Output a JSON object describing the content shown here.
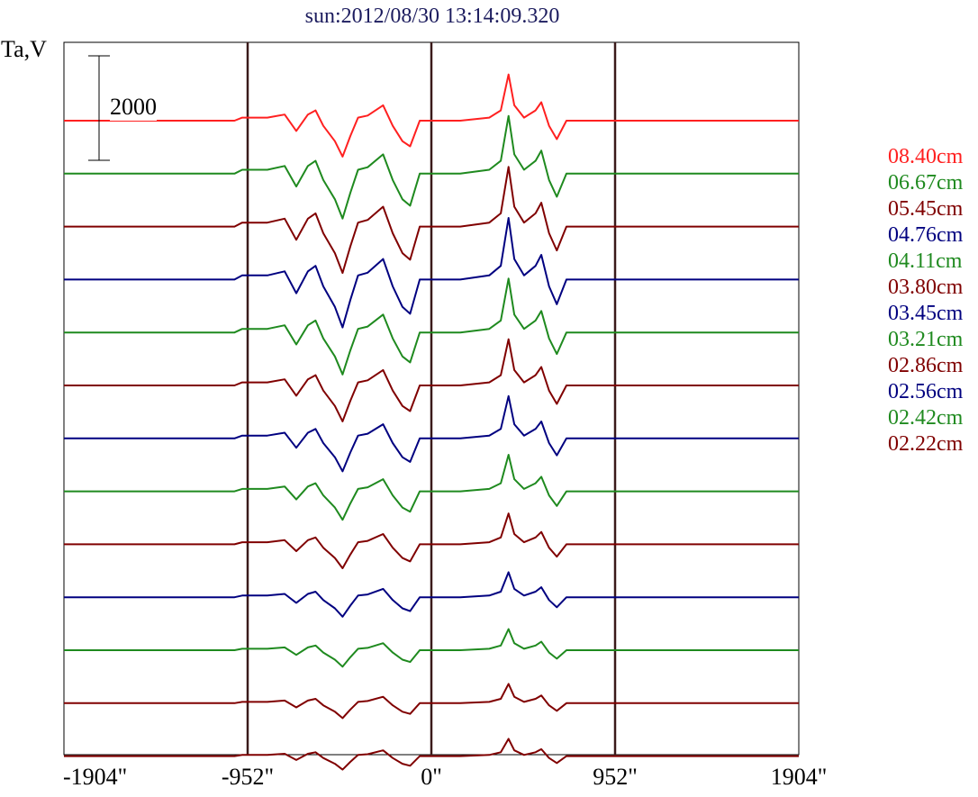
{
  "title": "sun:2012/08/30 13:14:09.320",
  "ylabel": "Ta,V",
  "scale_bar_label": "2000",
  "chart_data": {
    "type": "line",
    "title": "sun:2012/08/30 13:14:09.320",
    "ylabel": "Ta,V",
    "xlabel": "",
    "xlim": [
      -1904,
      1904
    ],
    "x_ticks": [
      "-1904\"",
      "-952\"",
      "0\"",
      "952\"",
      "1904\""
    ],
    "x_tick_values": [
      -1904,
      -952,
      0,
      952,
      1904
    ],
    "vertical_lines": [
      -952,
      0,
      952
    ],
    "scale_bar": 2000,
    "grid": false,
    "legend_position": "right",
    "series": [
      {
        "name": "08.40cm",
        "color": "#ff2020",
        "amp": 1.2
      },
      {
        "name": "06.67cm",
        "color": "#1f8a1f",
        "amp": 1.5
      },
      {
        "name": "05.45cm",
        "color": "#800000",
        "amp": 1.55
      },
      {
        "name": "04.76cm",
        "color": "#000080",
        "amp": 1.6
      },
      {
        "name": "04.11cm",
        "color": "#1f8a1f",
        "amp": 1.4
      },
      {
        "name": "03.80cm",
        "color": "#800000",
        "amp": 1.2
      },
      {
        "name": "03.45cm",
        "color": "#000080",
        "amp": 1.1
      },
      {
        "name": "03.21cm",
        "color": "#1f8a1f",
        "amp": 0.95
      },
      {
        "name": "02.86cm",
        "color": "#800000",
        "amp": 0.8
      },
      {
        "name": "02.56cm",
        "color": "#000080",
        "amp": 0.65
      },
      {
        "name": "02.42cm",
        "color": "#1f8a1f",
        "amp": 0.55
      },
      {
        "name": "02.22cm",
        "color": "#800000",
        "amp": 0.5
      }
    ],
    "profile": [
      [
        -1904,
        0
      ],
      [
        -1020,
        0
      ],
      [
        -980,
        0.03
      ],
      [
        -850,
        0.03
      ],
      [
        -760,
        0.06
      ],
      [
        -700,
        -0.1
      ],
      [
        -640,
        0.06
      ],
      [
        -600,
        0.1
      ],
      [
        -560,
        -0.05
      ],
      [
        -500,
        -0.2
      ],
      [
        -460,
        -0.35
      ],
      [
        -420,
        -0.15
      ],
      [
        -380,
        0.03
      ],
      [
        -330,
        0.05
      ],
      [
        -250,
        0.15
      ],
      [
        -200,
        -0.05
      ],
      [
        -150,
        -0.2
      ],
      [
        -110,
        -0.25
      ],
      [
        -60,
        0
      ],
      [
        0,
        0
      ],
      [
        150,
        0
      ],
      [
        300,
        0.03
      ],
      [
        360,
        0.1
      ],
      [
        400,
        0.45
      ],
      [
        430,
        0.15
      ],
      [
        480,
        0.03
      ],
      [
        540,
        0.1
      ],
      [
        570,
        0.18
      ],
      [
        610,
        -0.05
      ],
      [
        650,
        -0.18
      ],
      [
        700,
        0
      ],
      [
        1904,
        0
      ]
    ],
    "baseline_row": {
      "name": "",
      "color": "#800000",
      "amp": 0.45
    }
  }
}
